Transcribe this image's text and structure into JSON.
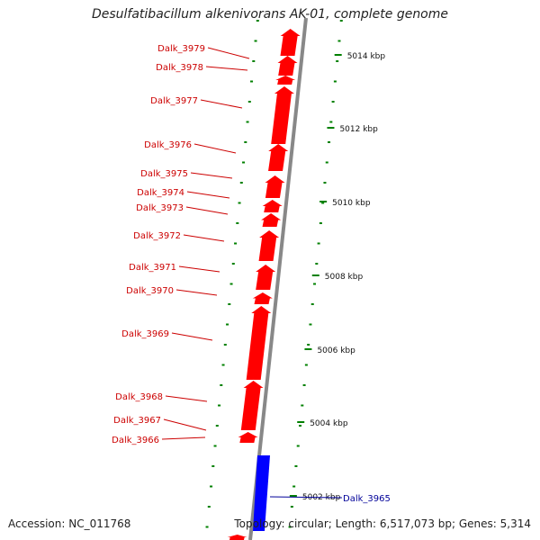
{
  "title": "Desulfatibacillum alkenivorans AK-01, complete genome",
  "accession": "Accession: NC_011768",
  "stats": "Topology: circular; Length: 6,517,073 bp; Genes: 5,314",
  "colors": {
    "forward_gene": "#ff0000",
    "reverse_gene": "#0000ff",
    "scale_ticks": "#008000",
    "backbone": "#888888",
    "gene_label": "#cc0000",
    "highlight_label": "#000099"
  },
  "genes": [
    {
      "label": "Dalk_3979",
      "strand": "+"
    },
    {
      "label": "Dalk_3978",
      "strand": "+"
    },
    {
      "label": "Dalk_3977",
      "strand": "+"
    },
    {
      "label": "Dalk_3976",
      "strand": "+"
    },
    {
      "label": "Dalk_3975",
      "strand": "+"
    },
    {
      "label": "Dalk_3974",
      "strand": "+"
    },
    {
      "label": "Dalk_3973",
      "strand": "+"
    },
    {
      "label": "Dalk_3972",
      "strand": "+"
    },
    {
      "label": "Dalk_3971",
      "strand": "+"
    },
    {
      "label": "Dalk_3970",
      "strand": "+"
    },
    {
      "label": "Dalk_3969",
      "strand": "+"
    },
    {
      "label": "Dalk_3968",
      "strand": "+"
    },
    {
      "label": "Dalk_3967",
      "strand": "+"
    },
    {
      "label": "Dalk_3966",
      "strand": "+"
    },
    {
      "label": "Dalk_3965",
      "strand": "-"
    }
  ],
  "scale_labels": [
    "5014 kbp",
    "5012 kbp",
    "5010 kbp",
    "5008 kbp",
    "5006 kbp",
    "5004 kbp",
    "5002 kbp"
  ]
}
